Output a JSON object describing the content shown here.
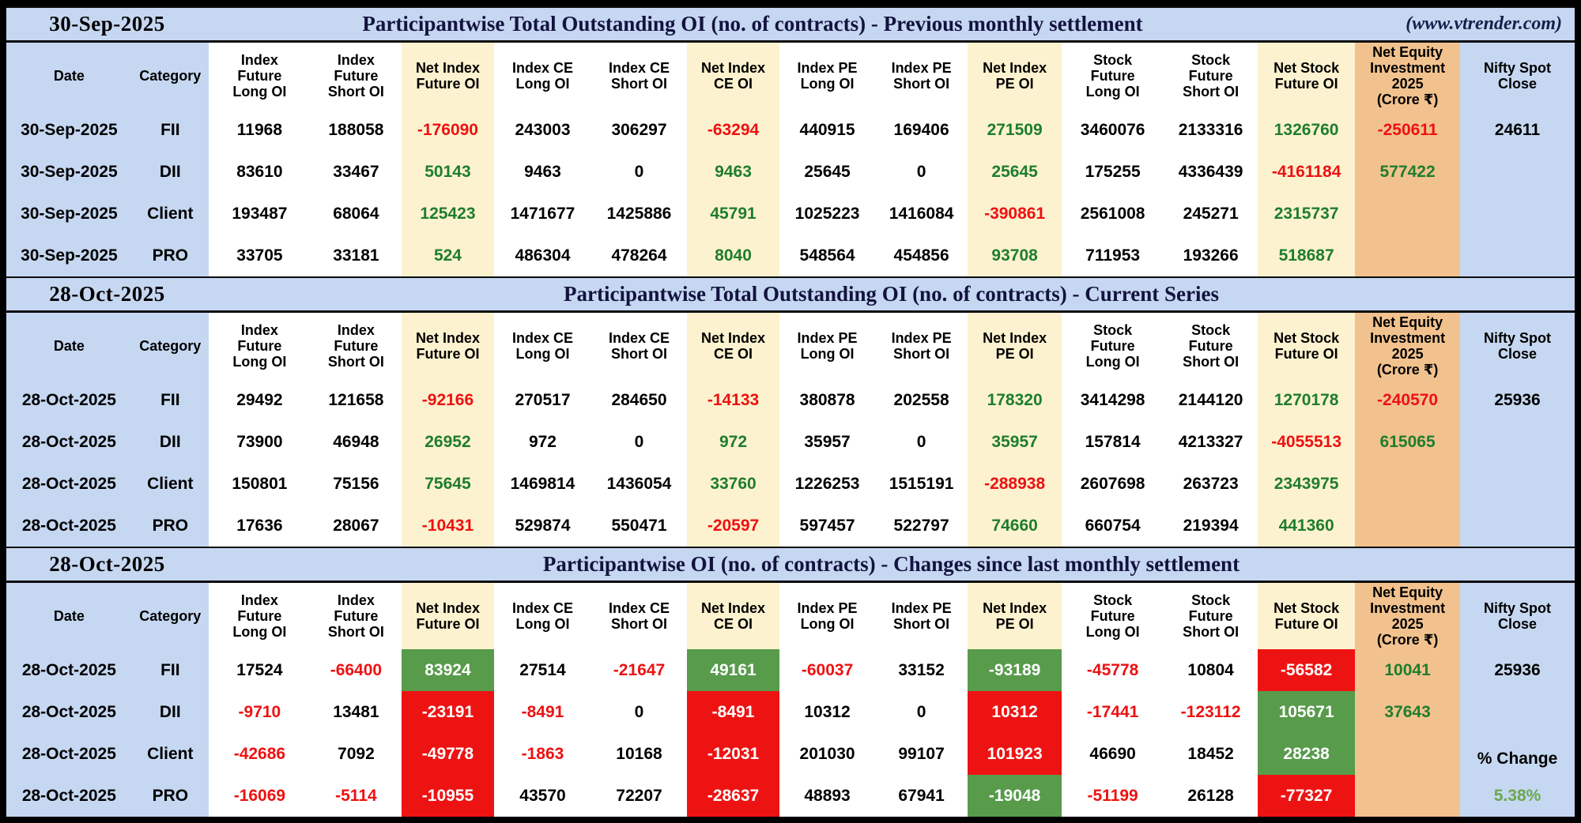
{
  "site": {
    "watermark": "(www.vtrender.com)"
  },
  "colors": {
    "band_blue": "#c6d7f1",
    "cream": "#fdf2cf",
    "orange": "#f2c28e",
    "positive_fill": "#579b4b",
    "negative_fill": "#ee1313",
    "positive_text": "#1e7d2d",
    "negative_text": "#ee1111",
    "pct_change_green": "#6aa84f"
  },
  "columns": [
    {
      "label": "Date"
    },
    {
      "label": "Category"
    },
    {
      "label": "Index\nFuture\nLong OI"
    },
    {
      "label": "Index\nFuture\nShort OI"
    },
    {
      "label": "Net Index\nFuture OI"
    },
    {
      "label": "Index CE\nLong OI"
    },
    {
      "label": "Index CE\nShort OI"
    },
    {
      "label": "Net Index\nCE OI"
    },
    {
      "label": "Index PE\nLong OI"
    },
    {
      "label": "Index PE\nShort OI"
    },
    {
      "label": "Net Index\nPE OI"
    },
    {
      "label": "Stock\nFuture\nLong OI"
    },
    {
      "label": "Stock\nFuture\nShort OI"
    },
    {
      "label": "Net Stock\nFuture OI"
    },
    {
      "label": "Net Equity\nInvestment\n2025\n(Crore ₹)"
    },
    {
      "label": "Nifty Spot\nClose"
    }
  ],
  "sections": [
    {
      "date": "30-Sep-2025",
      "title": "Participantwise Total Outstanding OI (no. of contracts) - Previous monthly settlement",
      "nifty": {
        "close": "24611",
        "change_label": "",
        "change_value": ""
      },
      "rows": [
        {
          "cells": [
            {
              "v": "30-Sep-2025"
            },
            {
              "v": "FII"
            },
            {
              "v": "11968"
            },
            {
              "v": "188058"
            },
            {
              "v": "-176090",
              "c": "r"
            },
            {
              "v": "243003"
            },
            {
              "v": "306297"
            },
            {
              "v": "-63294",
              "c": "r"
            },
            {
              "v": "440915"
            },
            {
              "v": "169406"
            },
            {
              "v": "271509",
              "c": "g"
            },
            {
              "v": "3460076"
            },
            {
              "v": "2133316"
            },
            {
              "v": "1326760",
              "c": "g"
            },
            {
              "v": "-250611",
              "c": "r"
            }
          ]
        },
        {
          "cells": [
            {
              "v": "30-Sep-2025"
            },
            {
              "v": "DII"
            },
            {
              "v": "83610"
            },
            {
              "v": "33467"
            },
            {
              "v": "50143",
              "c": "g"
            },
            {
              "v": "9463"
            },
            {
              "v": "0"
            },
            {
              "v": "9463",
              "c": "g"
            },
            {
              "v": "25645"
            },
            {
              "v": "0"
            },
            {
              "v": "25645",
              "c": "g"
            },
            {
              "v": "175255"
            },
            {
              "v": "4336439"
            },
            {
              "v": "-4161184",
              "c": "r"
            },
            {
              "v": "577422",
              "c": "g"
            }
          ]
        },
        {
          "cells": [
            {
              "v": "30-Sep-2025"
            },
            {
              "v": "Client"
            },
            {
              "v": "193487"
            },
            {
              "v": "68064"
            },
            {
              "v": "125423",
              "c": "g"
            },
            {
              "v": "1471677"
            },
            {
              "v": "1425886"
            },
            {
              "v": "45791",
              "c": "g"
            },
            {
              "v": "1025223"
            },
            {
              "v": "1416084"
            },
            {
              "v": "-390861",
              "c": "r"
            },
            {
              "v": "2561008"
            },
            {
              "v": "245271"
            },
            {
              "v": "2315737",
              "c": "g"
            },
            {
              "v": ""
            }
          ]
        },
        {
          "cells": [
            {
              "v": "30-Sep-2025"
            },
            {
              "v": "PRO"
            },
            {
              "v": "33705"
            },
            {
              "v": "33181"
            },
            {
              "v": "524",
              "c": "g"
            },
            {
              "v": "486304"
            },
            {
              "v": "478264"
            },
            {
              "v": "8040",
              "c": "g"
            },
            {
              "v": "548564"
            },
            {
              "v": "454856"
            },
            {
              "v": "93708",
              "c": "g"
            },
            {
              "v": "711953"
            },
            {
              "v": "193266"
            },
            {
              "v": "518687",
              "c": "g"
            },
            {
              "v": ""
            }
          ]
        }
      ]
    },
    {
      "date": "28-Oct-2025",
      "title": "Participantwise Total Outstanding OI (no. of contracts) - Current Series",
      "nifty": {
        "close": "25936",
        "change_label": "",
        "change_value": ""
      },
      "rows": [
        {
          "cells": [
            {
              "v": "28-Oct-2025"
            },
            {
              "v": "FII"
            },
            {
              "v": "29492"
            },
            {
              "v": "121658"
            },
            {
              "v": "-92166",
              "c": "r"
            },
            {
              "v": "270517"
            },
            {
              "v": "284650"
            },
            {
              "v": "-14133",
              "c": "r"
            },
            {
              "v": "380878"
            },
            {
              "v": "202558"
            },
            {
              "v": "178320",
              "c": "g"
            },
            {
              "v": "3414298"
            },
            {
              "v": "2144120"
            },
            {
              "v": "1270178",
              "c": "g"
            },
            {
              "v": "-240570",
              "c": "r"
            }
          ]
        },
        {
          "cells": [
            {
              "v": "28-Oct-2025"
            },
            {
              "v": "DII"
            },
            {
              "v": "73900"
            },
            {
              "v": "46948"
            },
            {
              "v": "26952",
              "c": "g"
            },
            {
              "v": "972"
            },
            {
              "v": "0"
            },
            {
              "v": "972",
              "c": "g"
            },
            {
              "v": "35957"
            },
            {
              "v": "0"
            },
            {
              "v": "35957",
              "c": "g"
            },
            {
              "v": "157814"
            },
            {
              "v": "4213327"
            },
            {
              "v": "-4055513",
              "c": "r"
            },
            {
              "v": "615065",
              "c": "g"
            }
          ]
        },
        {
          "cells": [
            {
              "v": "28-Oct-2025"
            },
            {
              "v": "Client"
            },
            {
              "v": "150801"
            },
            {
              "v": "75156"
            },
            {
              "v": "75645",
              "c": "g"
            },
            {
              "v": "1469814"
            },
            {
              "v": "1436054"
            },
            {
              "v": "33760",
              "c": "g"
            },
            {
              "v": "1226253"
            },
            {
              "v": "1515191"
            },
            {
              "v": "-288938",
              "c": "r"
            },
            {
              "v": "2607698"
            },
            {
              "v": "263723"
            },
            {
              "v": "2343975",
              "c": "g"
            },
            {
              "v": ""
            }
          ]
        },
        {
          "cells": [
            {
              "v": "28-Oct-2025"
            },
            {
              "v": "PRO"
            },
            {
              "v": "17636"
            },
            {
              "v": "28067"
            },
            {
              "v": "-10431",
              "c": "r"
            },
            {
              "v": "529874"
            },
            {
              "v": "550471"
            },
            {
              "v": "-20597",
              "c": "r"
            },
            {
              "v": "597457"
            },
            {
              "v": "522797"
            },
            {
              "v": "74660",
              "c": "g"
            },
            {
              "v": "660754"
            },
            {
              "v": "219394"
            },
            {
              "v": "441360",
              "c": "g"
            },
            {
              "v": ""
            }
          ]
        }
      ]
    },
    {
      "date": "28-Oct-2025",
      "title": "Participantwise OI (no. of contracts) - Changes since last monthly settlement",
      "nifty": {
        "close": "25936",
        "change_label": "% Change",
        "change_value": "5.38%"
      },
      "rows": [
        {
          "cells": [
            {
              "v": "28-Oct-2025"
            },
            {
              "v": "FII"
            },
            {
              "v": "17524"
            },
            {
              "v": "-66400",
              "c": "r"
            },
            {
              "v": "83924",
              "f": "g"
            },
            {
              "v": "27514"
            },
            {
              "v": "-21647",
              "c": "r"
            },
            {
              "v": "49161",
              "f": "g"
            },
            {
              "v": "-60037",
              "c": "r"
            },
            {
              "v": "33152"
            },
            {
              "v": "-93189",
              "f": "g"
            },
            {
              "v": "-45778",
              "c": "r"
            },
            {
              "v": "10804"
            },
            {
              "v": "-56582",
              "f": "r"
            },
            {
              "v": "10041",
              "c": "g"
            }
          ]
        },
        {
          "cells": [
            {
              "v": "28-Oct-2025"
            },
            {
              "v": "DII"
            },
            {
              "v": "-9710",
              "c": "r"
            },
            {
              "v": "13481"
            },
            {
              "v": "-23191",
              "f": "r"
            },
            {
              "v": "-8491",
              "c": "r"
            },
            {
              "v": "0"
            },
            {
              "v": "-8491",
              "f": "r"
            },
            {
              "v": "10312"
            },
            {
              "v": "0"
            },
            {
              "v": "10312",
              "f": "r"
            },
            {
              "v": "-17441",
              "c": "r"
            },
            {
              "v": "-123112",
              "c": "r"
            },
            {
              "v": "105671",
              "f": "g"
            },
            {
              "v": "37643",
              "c": "g"
            }
          ]
        },
        {
          "cells": [
            {
              "v": "28-Oct-2025"
            },
            {
              "v": "Client"
            },
            {
              "v": "-42686",
              "c": "r"
            },
            {
              "v": "7092"
            },
            {
              "v": "-49778",
              "f": "r"
            },
            {
              "v": "-1863",
              "c": "r"
            },
            {
              "v": "10168"
            },
            {
              "v": "-12031",
              "f": "r"
            },
            {
              "v": "201030"
            },
            {
              "v": "99107"
            },
            {
              "v": "101923",
              "f": "r"
            },
            {
              "v": "46690"
            },
            {
              "v": "18452"
            },
            {
              "v": "28238",
              "f": "g"
            },
            {
              "v": ""
            }
          ]
        },
        {
          "cells": [
            {
              "v": "28-Oct-2025"
            },
            {
              "v": "PRO"
            },
            {
              "v": "-16069",
              "c": "r"
            },
            {
              "v": "-5114",
              "c": "r"
            },
            {
              "v": "-10955",
              "f": "r"
            },
            {
              "v": "43570"
            },
            {
              "v": "72207"
            },
            {
              "v": "-28637",
              "f": "r"
            },
            {
              "v": "48893"
            },
            {
              "v": "67941"
            },
            {
              "v": "-19048",
              "f": "g"
            },
            {
              "v": "-51199",
              "c": "r"
            },
            {
              "v": "26128"
            },
            {
              "v": "-77327",
              "f": "r"
            },
            {
              "v": ""
            }
          ]
        }
      ]
    }
  ]
}
